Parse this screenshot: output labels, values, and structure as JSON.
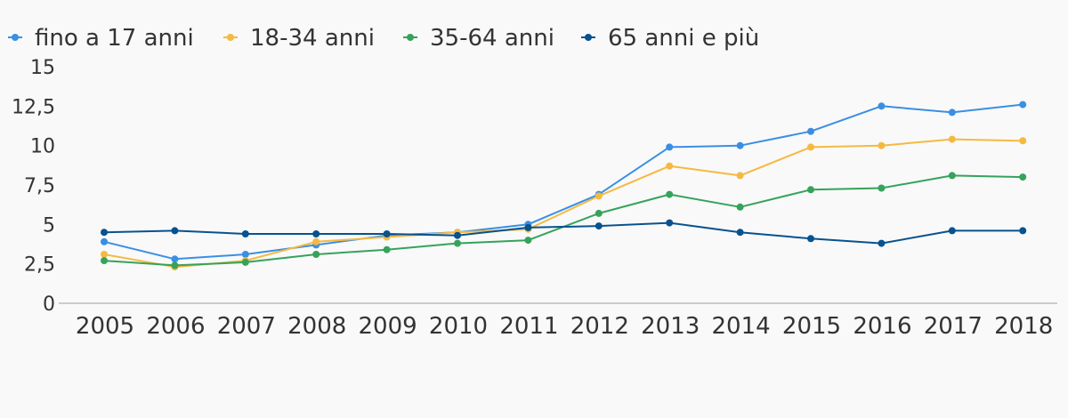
{
  "chart_data": {
    "type": "line",
    "title": "",
    "xlabel": "",
    "ylabel": "",
    "categories": [
      "2005",
      "2006",
      "2007",
      "2008",
      "2009",
      "2010",
      "2011",
      "2012",
      "2013",
      "2014",
      "2015",
      "2016",
      "2017",
      "2018"
    ],
    "ylim": [
      0,
      15
    ],
    "yticks": [
      0,
      2.5,
      5,
      7.5,
      10,
      12.5,
      15
    ],
    "ytick_labels": [
      "0",
      "2,5",
      "5",
      "7,5",
      "10",
      "12,5",
      "15"
    ],
    "grid": false,
    "legend_position": "top-left",
    "series": [
      {
        "name": "fino a 17 anni",
        "color": "#3a8fe3",
        "values": [
          3.9,
          2.8,
          3.1,
          3.7,
          4.3,
          4.5,
          5.0,
          6.9,
          9.9,
          10.0,
          10.9,
          12.5,
          12.1,
          12.6
        ]
      },
      {
        "name": "18-34 anni",
        "color": "#f5b942",
        "values": [
          3.1,
          2.3,
          2.7,
          3.9,
          4.2,
          4.5,
          4.7,
          6.8,
          8.7,
          8.1,
          9.9,
          10.0,
          10.4,
          10.3
        ]
      },
      {
        "name": "35-64 anni",
        "color": "#35a35a",
        "values": [
          2.7,
          2.4,
          2.6,
          3.1,
          3.4,
          3.8,
          4.0,
          5.7,
          6.9,
          6.1,
          7.2,
          7.3,
          8.1,
          8.0
        ]
      },
      {
        "name": "65 anni e più",
        "color": "#07528f",
        "values": [
          4.5,
          4.6,
          4.4,
          4.4,
          4.4,
          4.3,
          4.8,
          4.9,
          5.1,
          4.5,
          4.1,
          3.8,
          4.6,
          4.6
        ]
      }
    ]
  }
}
